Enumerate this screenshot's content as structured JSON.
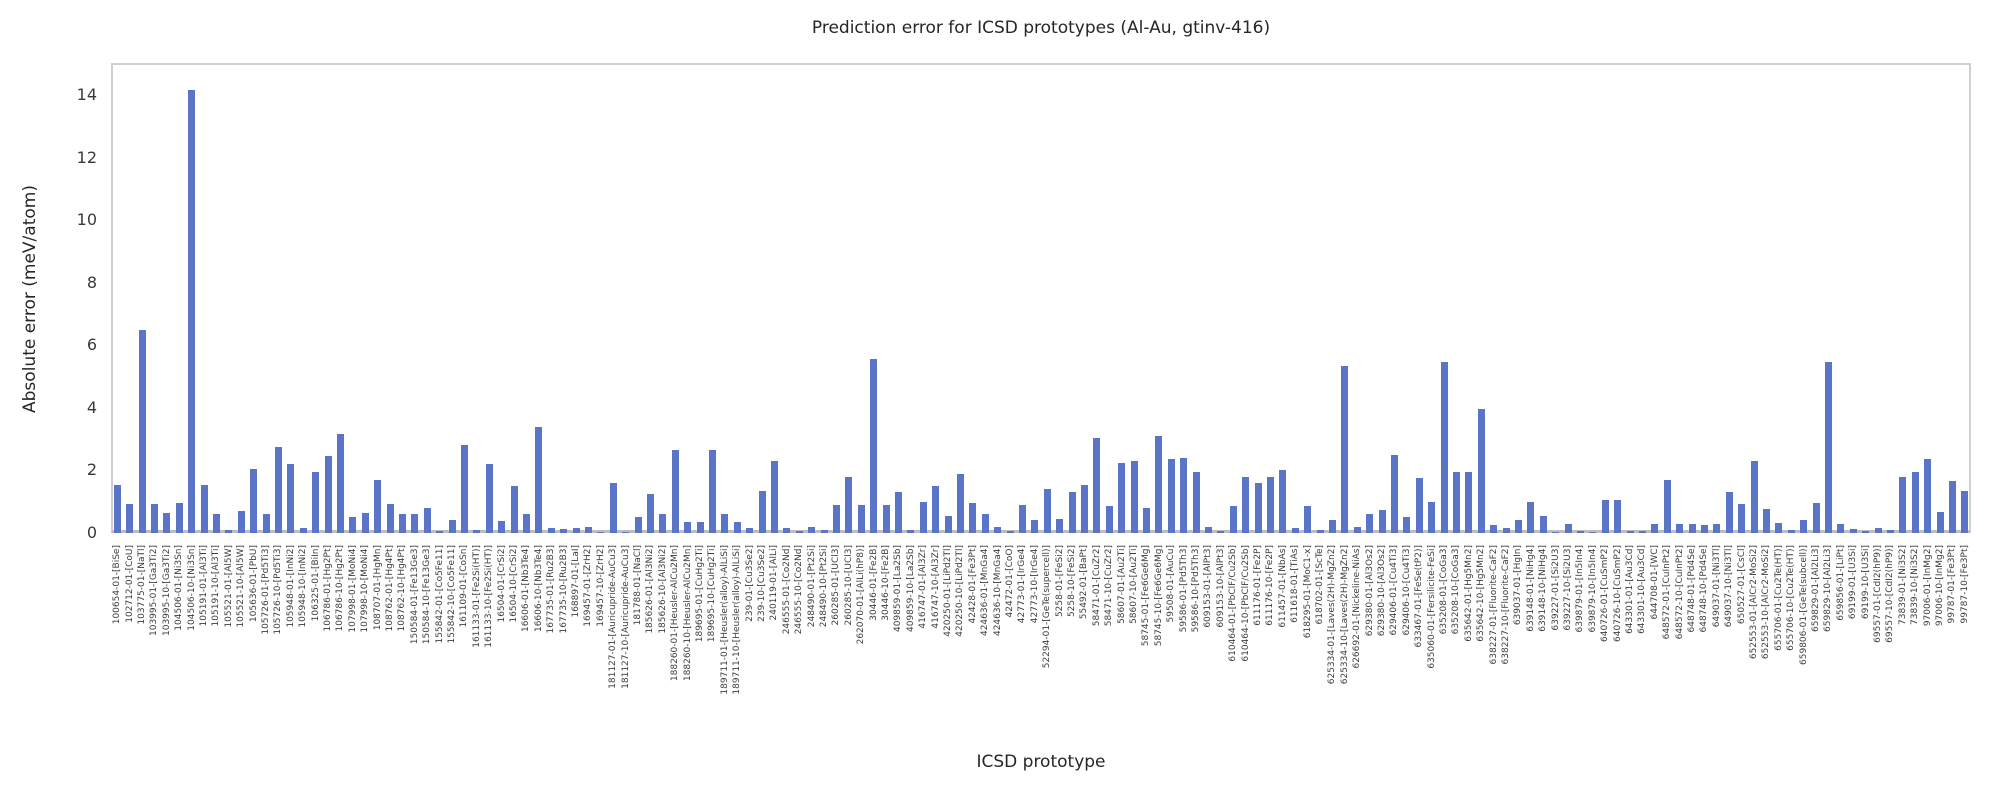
{
  "chart_data": {
    "type": "bar",
    "title": "Prediction error for ICSD prototypes (Al-Au, gtinv-416)",
    "xlabel": "ICSD prototype",
    "ylabel": "Absolute error (meV/atom)",
    "ylim": [
      0,
      15
    ],
    "yticks": [
      0,
      2,
      4,
      6,
      8,
      10,
      12,
      14
    ],
    "grid": "horizontal-dashed",
    "legend": "none",
    "bar_color": "#5a74c8",
    "categories": [
      "100654-01-[BiSe]",
      "102712-01-[CoU]",
      "103775-01-[NaTl]",
      "103995-01-[Ga3Ti2]",
      "103995-10-[Ga3Ti2]",
      "104506-01-[Ni3Sn]",
      "104506-10-[Ni3Sn]",
      "105191-01-[Al3Ti]",
      "105191-10-[Al3Ti]",
      "105521-01-[Al5W]",
      "105521-10-[Al5W]",
      "105636-01-[PbU]",
      "105726-01-[Pd5Ti3]",
      "105726-10-[Pd5Ti3]",
      "105948-01-[InNi2]",
      "105948-10-[InNi2]",
      "106325-01-[BiIn]",
      "106786-01-[Hg2Pt]",
      "106786-10-[Hg2Pt]",
      "107998-01-[MoNi4]",
      "107998-10-[MoNi4]",
      "108707-01-[HgMn]",
      "108762-01-[Hg4Pt]",
      "108762-10-[Hg4Pt]",
      "150584-01-[Fe13Ge3]",
      "150584-10-[Fe13Ge3]",
      "155842-01-[Co5Fe11]",
      "155842-10-[Co5Fe11]",
      "161109-01-[CoSn]",
      "161133-01-[Fe2Si(HT)]",
      "161133-10-[Fe2Si(HT)]",
      "16504-01-[CrSi2]",
      "16504-10-[CrSi2]",
      "16606-01-[Nb3Te4]",
      "16606-10-[Nb3Te4]",
      "167735-01-[Ru2B3]",
      "167735-10-[Ru2B3]",
      "168897-01-[LaI]",
      "169457-01-[ZrH2]",
      "169457-10-[ZrH2]",
      "181127-01-[Auricupride-AuCu3]",
      "181127-10-[Auricupride-AuCu3]",
      "181788-01-[NaCl]",
      "185626-01-[Al3Ni2]",
      "185626-10-[Al3Ni2]",
      "188260-01-[Heusler-AlCu2Mn]",
      "188260-10-[Heusler-AlCu2Mn]",
      "189695-01-[CuHg2Ti]",
      "189695-10-[CuHg2Ti]",
      "189711-01-[Heusler(alloy)-AlLiSi]",
      "189711-10-[Heusler(alloy)-AlLiSi]",
      "239-01-[Cu3Se2]",
      "239-10-[Cu3Se2]",
      "240119-01-[AlLi]",
      "246555-01-[Co2Nd]",
      "246555-10-[Co2Nd]",
      "248490-01-[Pt2Si]",
      "248490-10-[Pt2Si]",
      "260285-01-[UCl3]",
      "260285-10-[UCl3]",
      "262070-01-[AlLi(hP8)]",
      "30446-01-[Fe2B]",
      "30446-10-[Fe2B]",
      "409859-01-[La2Sb]",
      "409859-10-[La2Sb]",
      "416747-01-[Al3Zr]",
      "416747-10-[Al3Zr]",
      "420250-01-[LiPd2Tl]",
      "420250-10-[LiPd2Tl]",
      "42428-01-[Fe3Pt]",
      "424636-01-[MnGa4]",
      "424636-10-[MnGa4]",
      "42472-01-[CoO]",
      "42773-01-[IrGe4]",
      "42773-10-[IrGe4]",
      "52294-01-[GeTe(supercell)]",
      "5258-01-[FeSi2]",
      "5258-10-[FeSi2]",
      "55492-01-[BaPt]",
      "58471-01-[CuZr2]",
      "58471-10-[CuZr2]",
      "58607-01-[Au2Ti]",
      "58607-10-[Au2Ti]",
      "58745-01-[Fe6Ge6Mg]",
      "58745-10-[Fe6Ge6Mg]",
      "59508-01-[AuCu]",
      "59586-01-[Pd5Th3]",
      "59586-10-[Pd5Th3]",
      "609153-01-[AlPt3]",
      "609153-10-[AlPt3]",
      "610464-01-[PbClF/Cu2Sb]",
      "610464-10-[PbClF/Cu2Sb]",
      "611176-01-[Fe2P]",
      "611176-10-[Fe2P]",
      "611457-01-[NbAs]",
      "611618-01-[TiAs]",
      "618295-01-[MoC1-x]",
      "618702-01-[ScTe]",
      "625334-01-[Laves(2H)-MgZn2]",
      "625334-10-[Laves(2H)-MgZn2]",
      "626692-01-[Nickeline-NiAs]",
      "629380-01-[Al3Os2]",
      "629380-10-[Al3Os2]",
      "629406-01-[Cu4Ti3]",
      "629406-10-[Cu4Ti3]",
      "633467-01-[FeSe(tP2)]",
      "635060-01-[Fersilicite-FeSi]",
      "635208-01-[CoGa3]",
      "635208-10-[CoGa3]",
      "635642-01-[Hg5Mn2]",
      "635642-10-[Hg5Mn2]",
      "638227-01-[Fluorite-CaF2]",
      "638227-10-[Fluorite-CaF2]",
      "639037-01-[HgIn]",
      "639148-01-[NiHg4]",
      "639148-10-[NiHg4]",
      "639227-01-[Si2U3]",
      "639227-10-[Si2U3]",
      "639879-01-[In5In4]",
      "639879-10-[In5In4]",
      "640726-01-[CuSmP2]",
      "640726-10-[CuSmP2]",
      "643301-01-[Au3Cd]",
      "643301-10-[Au3Cd]",
      "644708-01-[WC]",
      "648572-01-[CuInPt2]",
      "648572-10-[CuInPt2]",
      "648748-01-[Pd4Se]",
      "648748-10-[Pd4Se]",
      "649037-01-[Ni3Tl]",
      "649037-10-[Ni3Tl]",
      "650527-01-[CsCl]",
      "652553-01-[AlCr2-MoSi2]",
      "652553-10-[AlCr2-MoSi2]",
      "655706-01-[Cu2Te(HT)]",
      "655706-10-[Cu2Te(HT)]",
      "659806-01-[GeTe(subcell)]",
      "659829-01-[Al2Li3]",
      "659829-10-[Al2Li3]",
      "659856-01-[LiPt]",
      "69199-01-[U3Si]",
      "69199-10-[U3Si]",
      "69557-01-[CdI2(hP9)]",
      "69557-10-[CdI2(hP9)]",
      "73839-01-[Ni3S2]",
      "73839-10-[Ni3S2]",
      "97006-01-[InMg2]",
      "97006-10-[InMg2]",
      "99787-01-[Fe3Pt]",
      "99787-10-[Fe3Pt]"
    ],
    "values": [
      1.55,
      0.93,
      6.5,
      0.94,
      0.64,
      0.96,
      14.15,
      1.55,
      0.6,
      0.1,
      0.7,
      2.05,
      0.6,
      2.75,
      2.2,
      0.15,
      1.95,
      2.45,
      3.15,
      0.5,
      0.65,
      1.7,
      0.93,
      0.6,
      0.6,
      0.8,
      0.06,
      0.43,
      2.8,
      0.1,
      2.2,
      0.38,
      1.5,
      0.6,
      3.4,
      0.17,
      0.12,
      0.16,
      0.19,
      0.03,
      1.6,
      0.03,
      0.5,
      1.25,
      0.6,
      2.65,
      0.35,
      0.35,
      2.65,
      0.6,
      0.35,
      0.15,
      1.35,
      2.3,
      0.15,
      0.05,
      0.2,
      0.1,
      0.9,
      1.8,
      0.9,
      5.55,
      0.9,
      1.3,
      0.1,
      1.0,
      1.5,
      0.55,
      1.9,
      0.95,
      0.6,
      0.2,
      0.05,
      0.9,
      0.4,
      1.4,
      0.45,
      1.3,
      1.55,
      3.05,
      0.85,
      2.25,
      2.3,
      0.8,
      3.1,
      2.35,
      2.4,
      1.95,
      0.2,
      0.05,
      0.85,
      1.8,
      1.6,
      1.8,
      2.0,
      0.15,
      0.85,
      0.1,
      0.4,
      5.35,
      0.2,
      0.6,
      0.75,
      2.5,
      0.5,
      1.75,
      1.0,
      5.45,
      1.95,
      1.95,
      3.95,
      0.25,
      0.15,
      0.4,
      1.0,
      0.55,
      0.02,
      0.3,
      0.06,
      0.02,
      1.05,
      1.05,
      0.05,
      0.05,
      0.3,
      1.7,
      0.3,
      0.3,
      0.25,
      0.3,
      1.3,
      0.93,
      2.3,
      0.77,
      0.32,
      0.1,
      0.42,
      0.95,
      5.45,
      0.3,
      0.13,
      0.06,
      0.17,
      0.1,
      1.8,
      1.95,
      2.35,
      0.67,
      1.65,
      1.35
    ]
  }
}
